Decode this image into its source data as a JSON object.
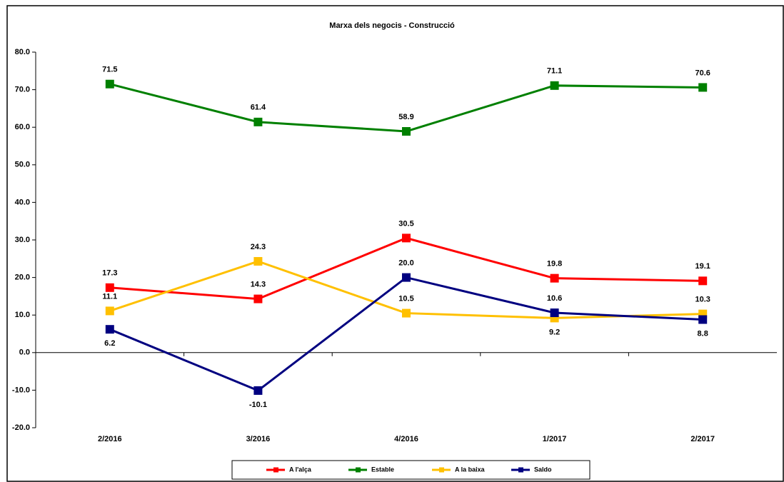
{
  "chart_data": {
    "type": "line",
    "title": "Marxa dels negocis - Construcció",
    "categories": [
      "2/2016",
      "3/2016",
      "4/2016",
      "1/2017",
      "2/2017"
    ],
    "series": [
      {
        "name": "A l'alça",
        "color": "#ff0000",
        "values": [
          17.3,
          14.3,
          30.5,
          19.8,
          19.1
        ],
        "value_labels": [
          "17.3",
          "14.3",
          "30.5",
          "19.8",
          "19.1"
        ]
      },
      {
        "name": "Estable",
        "color": "#008000",
        "values": [
          71.5,
          61.4,
          58.9,
          71.1,
          70.6
        ],
        "value_labels": [
          "71.5",
          "61.4",
          "58.9",
          "71.1",
          "70.6"
        ]
      },
      {
        "name": "A la baixa",
        "color": "#ffc000",
        "values": [
          11.1,
          24.3,
          10.5,
          9.2,
          10.3
        ],
        "value_labels": [
          "11.1",
          "24.3",
          "10.5",
          "9.2",
          "10.3"
        ]
      },
      {
        "name": "Saldo",
        "color": "#000080",
        "values": [
          6.2,
          -10.1,
          20.0,
          10.6,
          8.8
        ],
        "value_labels": [
          "6.2",
          "-10.1",
          "20.0",
          "10.6",
          "8.8"
        ]
      }
    ],
    "ylim": [
      -20,
      80
    ],
    "yticks": [
      {
        "value": -20,
        "label": "-20.0"
      },
      {
        "value": -10,
        "label": "-10.0"
      },
      {
        "value": 0,
        "label": "0.0"
      },
      {
        "value": 10,
        "label": "10.0"
      },
      {
        "value": 20,
        "label": "20.0"
      },
      {
        "value": 30,
        "label": "30.0"
      },
      {
        "value": 40,
        "label": "40.0"
      },
      {
        "value": 50,
        "label": "50.0"
      },
      {
        "value": 60,
        "label": "60.0"
      },
      {
        "value": 70,
        "label": "70.0"
      },
      {
        "value": 80,
        "label": "80.0"
      }
    ],
    "grid": false,
    "legend": "bottom"
  }
}
